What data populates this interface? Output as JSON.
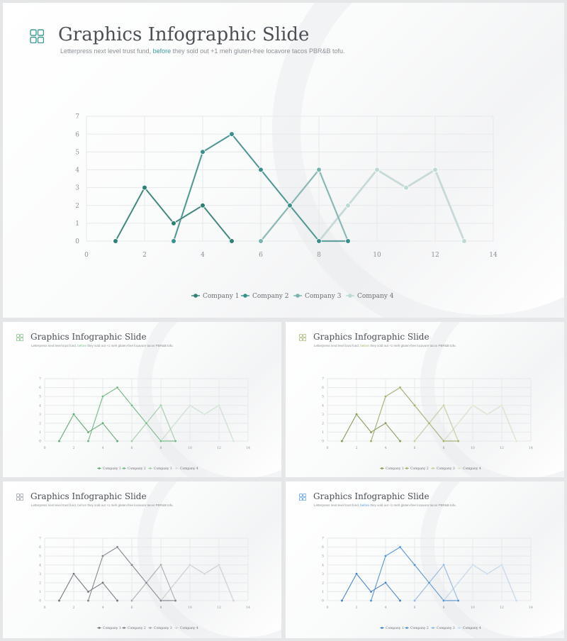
{
  "slide": {
    "title": "Graphics Infographic Slide",
    "subtitle_before": "Letterpress next level trust fund, ",
    "subtitle_highlight": "before",
    "subtitle_after": " they sold out +1 meh gluten-free locavore tacos PBR&B tofu."
  },
  "themes": {
    "main": {
      "accent": "#3f9a98",
      "series_colors": [
        "#2e7f74",
        "#3a8f8b",
        "#78b4ad",
        "#bcd9d4"
      ]
    },
    "s1": {
      "accent": "#7cbf8a",
      "series_colors": [
        "#5aa86a",
        "#6db87c",
        "#9fd0a6",
        "#cfe6d2"
      ]
    },
    "s2": {
      "accent": "#a6b873",
      "series_colors": [
        "#7f9a4a",
        "#9aaf62",
        "#c5d09a",
        "#e0e6c8"
      ]
    },
    "s3": {
      "accent": "#9a9ea4",
      "series_colors": [
        "#6d7278",
        "#7d8288",
        "#a8acb1",
        "#cfd2d5"
      ]
    },
    "s4": {
      "accent": "#5a9bd8",
      "series_colors": [
        "#3a7fc8",
        "#4d90d5",
        "#8fb8e4",
        "#c6dbf2"
      ]
    }
  },
  "chart_data": {
    "type": "line",
    "xlim": [
      0,
      14
    ],
    "ylim": [
      0,
      7
    ],
    "x_ticks": [
      "0",
      "2",
      "4",
      "6",
      "8",
      "10",
      "12",
      "14"
    ],
    "y_ticks": [
      "0",
      "1",
      "2",
      "3",
      "4",
      "5",
      "6",
      "7"
    ],
    "grid": true,
    "legend_position": "bottom",
    "series": [
      {
        "name": "Company 1",
        "x": [
          1,
          2,
          3,
          4,
          5
        ],
        "y": [
          0,
          3,
          1,
          2,
          0
        ]
      },
      {
        "name": "Company 2",
        "x": [
          3,
          4,
          5,
          6,
          7,
          8,
          9
        ],
        "y": [
          0,
          5,
          6,
          4,
          2,
          0,
          0
        ]
      },
      {
        "name": "Company 3",
        "x": [
          6,
          7,
          8,
          9
        ],
        "y": [
          0,
          2,
          4,
          0
        ]
      },
      {
        "name": "Company 4",
        "x": [
          8,
          9,
          10,
          11,
          12,
          13
        ],
        "y": [
          0,
          2,
          4,
          3,
          4,
          0
        ]
      }
    ]
  }
}
